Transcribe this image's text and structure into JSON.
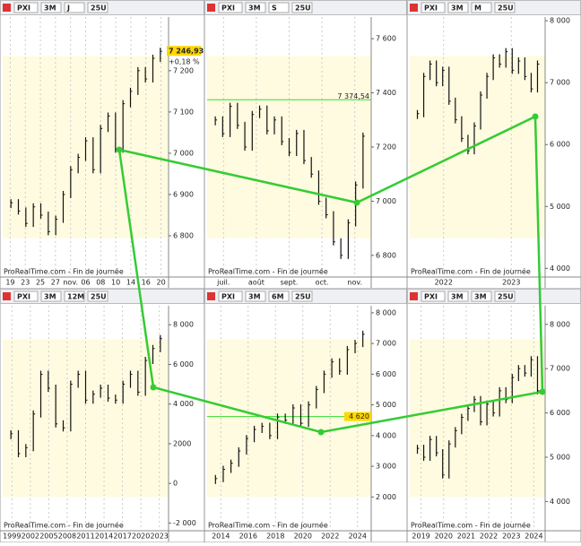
{
  "panels": [
    {
      "toolbar": [
        "PXI",
        "3M",
        "J",
        "25U"
      ],
      "ylim": [
        6700,
        7330
      ],
      "yticks": [
        {
          "value": 7200,
          "label": "7 200"
        },
        {
          "value": 7100,
          "label": "7 100"
        },
        {
          "value": 7000,
          "label": "7 000"
        },
        {
          "value": 6900,
          "label": "6 900"
        },
        {
          "value": 6800,
          "label": "6 800"
        }
      ],
      "xlabels": [
        "19",
        "23",
        "25",
        "27",
        "nov.",
        "06",
        "08",
        "10",
        "14",
        "16",
        "20"
      ],
      "closes": [
        6880,
        6860,
        6830,
        6870,
        6850,
        6810,
        6840,
        6900,
        6960,
        6990,
        7030,
        6960,
        7060,
        7090,
        7010,
        7120,
        7150,
        7200,
        7180,
        7230,
        7246.93
      ],
      "last": {
        "value": 7246.93,
        "label": "7 246,93"
      },
      "change": "+0,18 %",
      "footer": "ProRealTime.com - Fin de journée"
    },
    {
      "toolbar": [
        "PXI",
        "3M",
        "S",
        "25U"
      ],
      "ylim": [
        6720,
        7680
      ],
      "yticks": [
        {
          "value": 7600,
          "label": "7 600"
        },
        {
          "value": 7400,
          "label": "7 400"
        },
        {
          "value": 7200,
          "label": "7 200"
        },
        {
          "value": 7000,
          "label": "7 000"
        },
        {
          "value": 6800,
          "label": "6 800"
        }
      ],
      "xlabels": [
        "juil.",
        "août",
        "sept.",
        "oct.",
        "nov."
      ],
      "closes": [
        7300,
        7250,
        7350,
        7280,
        7200,
        7320,
        7340,
        7260,
        7300,
        7220,
        7180,
        7250,
        7150,
        7100,
        7000,
        6950,
        6850,
        6800,
        6920,
        7060,
        7240
      ],
      "level": {
        "value": 7374.54,
        "label": "7 374,54"
      },
      "footer": "ProRealTime.com - Fin de journée"
    },
    {
      "toolbar": [
        "PXI",
        "3M",
        "M",
        "25U"
      ],
      "ylim": [
        3860,
        8060
      ],
      "yticks": [
        {
          "value": 8000,
          "label": "8 000"
        },
        {
          "value": 7000,
          "label": "7 000"
        },
        {
          "value": 6000,
          "label": "6 000"
        },
        {
          "value": 5000,
          "label": "5 000"
        },
        {
          "value": 4000,
          "label": "4 000"
        }
      ],
      "xlabels": [
        "2022",
        "2023"
      ],
      "closes": [
        6500,
        7100,
        7300,
        7000,
        7200,
        6700,
        6400,
        6100,
        5900,
        6300,
        6800,
        7100,
        7400,
        7300,
        7500,
        7200,
        7350,
        7100,
        6900,
        7300
      ],
      "footer": "ProRealTime.com - Fin de journée"
    },
    {
      "toolbar": [
        "PXI",
        "3M",
        "12M",
        "25U"
      ],
      "ylim": [
        -2390,
        8960
      ],
      "yticks": [
        {
          "value": 8000,
          "label": "8 000"
        },
        {
          "value": 6000,
          "label": "6 000"
        },
        {
          "value": 4000,
          "label": "4 000"
        },
        2000,
        0,
        {
          "value": -2000,
          "label": "-2 000"
        }
      ],
      "xlabels": [
        "1999",
        "2002",
        "2005",
        "2008",
        "2011",
        "2014",
        "2017",
        "2020",
        "2023"
      ],
      "closes": [
        2500,
        1500,
        1800,
        3500,
        5500,
        4800,
        3000,
        2800,
        5000,
        5500,
        4200,
        4500,
        4800,
        4300,
        4200,
        5000,
        5500,
        4600,
        6200,
        6800,
        7300
      ],
      "footer": "ProRealTime.com - Fin de journée"
    },
    {
      "toolbar": [
        "PXI",
        "3M",
        "6M",
        "25U"
      ],
      "ylim": [
        900,
        8230
      ],
      "yticks": [
        {
          "value": 8000,
          "label": "8 000"
        },
        {
          "value": 7000,
          "label": "7 000"
        },
        {
          "value": 6000,
          "label": "6 000"
        },
        {
          "value": 5000,
          "label": "5 000"
        },
        {
          "value": 4000,
          "label": "4 000"
        },
        {
          "value": 3000,
          "label": "3 000"
        },
        {
          "value": 2000,
          "label": "2 000"
        }
      ],
      "xlabels": [
        "2014",
        "2016",
        "2018",
        "2020",
        "2022",
        "2024"
      ],
      "closes": [
        2600,
        2900,
        3100,
        3500,
        3900,
        4200,
        4300,
        4000,
        4600,
        4500,
        4900,
        4400,
        5000,
        5500,
        6000,
        6400,
        6100,
        6800,
        7000,
        7300
      ],
      "level": {
        "value": 4620,
        "label": "4 620"
      },
      "footer": "ProRealTime.com - Fin de journée"
    },
    {
      "toolbar": [
        "PXI",
        "3M",
        "3M",
        "25U"
      ],
      "ylim": [
        3340,
        8420
      ],
      "yticks": [
        {
          "value": 8000,
          "label": "8 000"
        },
        {
          "value": 7000,
          "label": "7 000"
        },
        {
          "value": 6000,
          "label": "6 000"
        },
        {
          "value": 5000,
          "label": "5 000"
        },
        {
          "value": 4000,
          "label": "4 000"
        }
      ],
      "xlabels": [
        "2019",
        "2020",
        "2021",
        "2022",
        "2023",
        "2024"
      ],
      "closes": [
        5200,
        5000,
        5400,
        5100,
        4600,
        5300,
        5600,
        5900,
        6100,
        6300,
        5800,
        6200,
        6000,
        6500,
        6300,
        6800,
        7000,
        6900,
        7200,
        6500
      ],
      "footer": "ProRealTime.com - Fin de journée"
    }
  ]
}
